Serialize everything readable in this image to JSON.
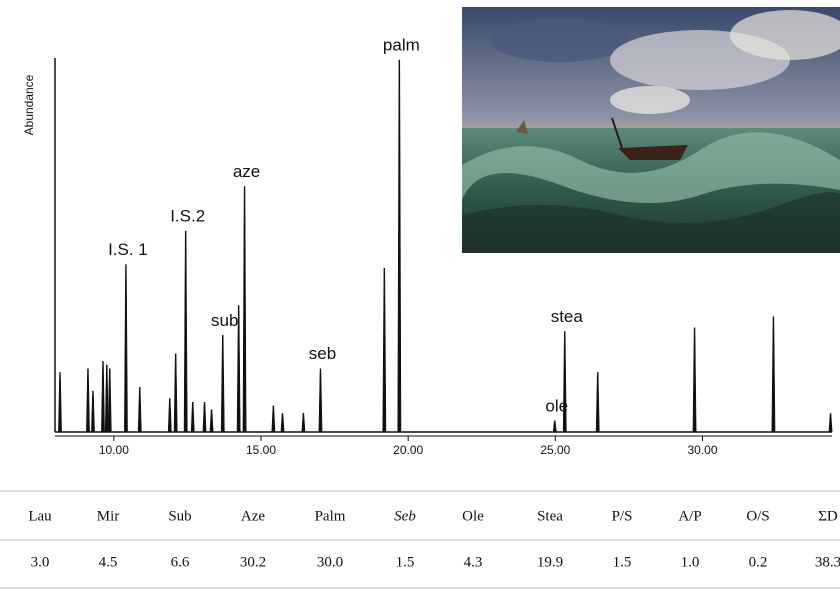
{
  "chart_data": {
    "type": "peaks",
    "y_label": "Abundance",
    "x": [
      8.17,
      9.12,
      9.29,
      9.63,
      9.76,
      9.86,
      10.41,
      10.88,
      11.9,
      12.1,
      12.44,
      12.68,
      13.08,
      13.32,
      13.7,
      14.24,
      14.44,
      15.42,
      15.73,
      16.44,
      17.02,
      19.19,
      19.7,
      24.98,
      25.32,
      26.44,
      29.73,
      32.41,
      34.35
    ],
    "values": [
      16,
      17,
      11,
      19,
      18,
      17,
      45,
      12,
      9,
      21,
      54,
      8,
      8,
      6,
      26,
      34,
      66,
      7,
      5,
      5,
      17,
      44,
      100,
      3,
      27,
      16,
      28,
      31,
      5
    ],
    "peak_labels": [
      null,
      null,
      null,
      null,
      null,
      null,
      "I.S. 1",
      null,
      null,
      null,
      "I.S.2",
      null,
      null,
      null,
      "sub",
      null,
      "aze",
      null,
      null,
      null,
      "seb",
      null,
      "palm",
      "ole",
      "stea",
      null,
      null,
      null,
      null
    ],
    "color": "#111111",
    "xlim": [
      8,
      34.4
    ],
    "ylim": [
      0,
      100
    ],
    "xticks": [
      {
        "value": 10,
        "label": "10.00"
      },
      {
        "value": 15,
        "label": "15.00"
      },
      {
        "value": 20,
        "label": "20.00"
      },
      {
        "value": 25,
        "label": "25.00"
      },
      {
        "value": 30,
        "label": "30.00"
      }
    ]
  },
  "table": {
    "header": [
      "Lau",
      "Mir",
      "Sub",
      "Aze",
      "Palm",
      "Seb",
      "Ole",
      "Stea",
      "P/S",
      "A/P",
      "O/S",
      "ΣD"
    ],
    "rows": [
      [
        "3.0",
        "4.5",
        "6.6",
        "30.2",
        "30.0",
        "1.5",
        "4.3",
        "19.9",
        "1.5",
        "1.0",
        "0.2",
        "38.3"
      ]
    ]
  }
}
